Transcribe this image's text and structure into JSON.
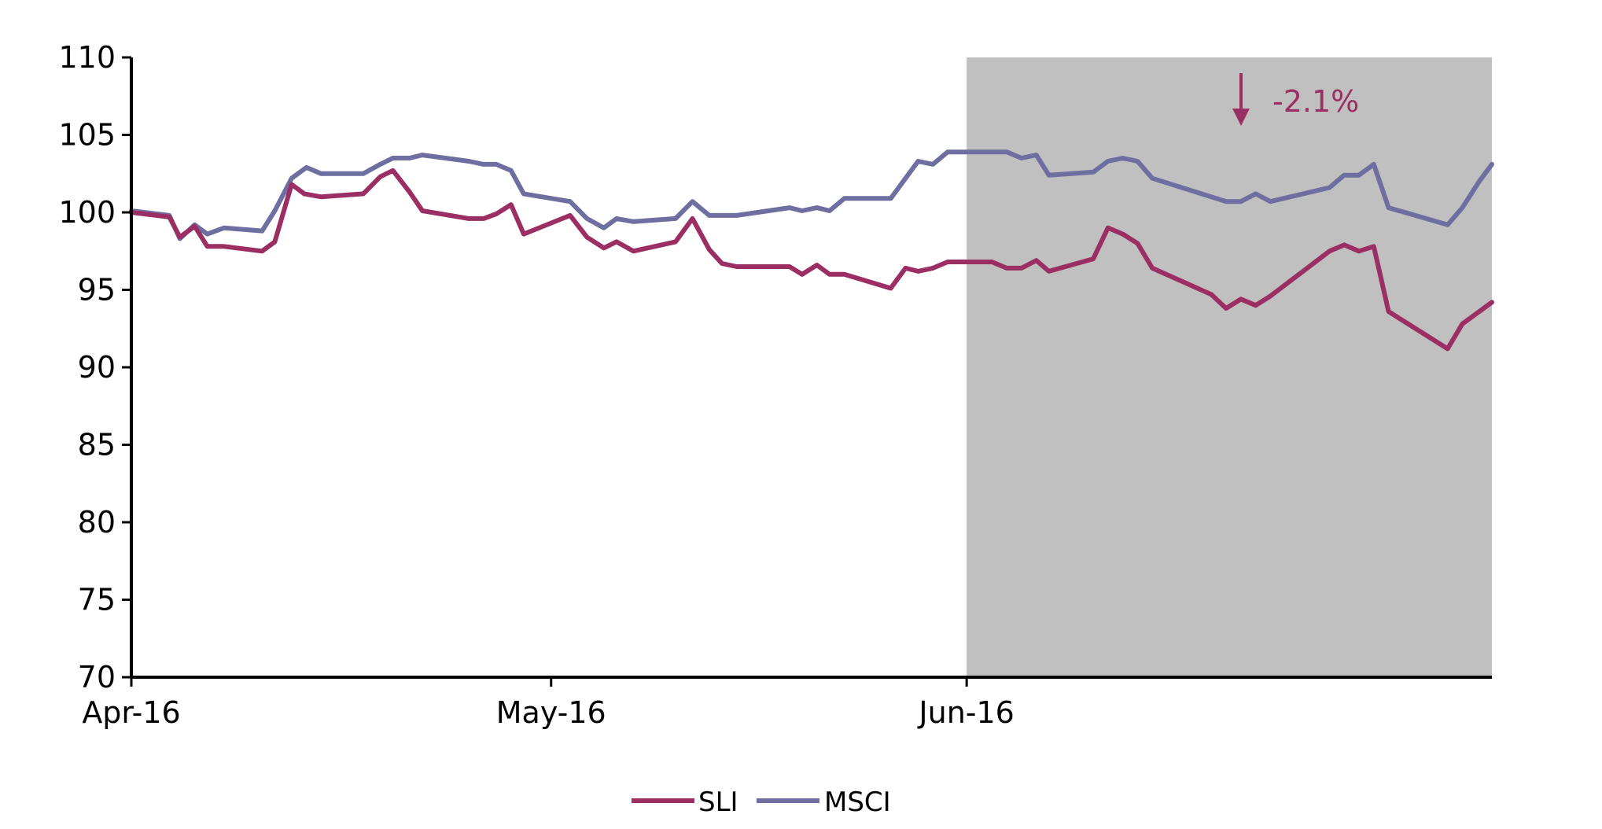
{
  "chart_data": {
    "type": "line",
    "title": "",
    "xlabel": "",
    "ylabel": "",
    "ylim": [
      70,
      110
    ],
    "yticks": [
      70,
      75,
      80,
      85,
      90,
      95,
      100,
      105,
      110
    ],
    "x_tick_labels": [
      "Apr-16",
      "May-16",
      "Jun-16"
    ],
    "grid": false,
    "legend_position": "bottom-center",
    "shaded_region": {
      "from": "Jun-16",
      "to": "end",
      "color": "#c0c0c0"
    },
    "annotation": {
      "text": "-2.1%",
      "arrow": "down",
      "color": "#9b2f63"
    },
    "series": [
      {
        "name": "SLI",
        "color": "#9b2f63",
        "values": [
          [
            0.0,
            100.0
          ],
          [
            1.8,
            99.7
          ],
          [
            2.3,
            98.4
          ],
          [
            3.0,
            99.1
          ],
          [
            3.6,
            97.8
          ],
          [
            4.4,
            97.8
          ],
          [
            6.2,
            97.5
          ],
          [
            6.8,
            98.1
          ],
          [
            7.6,
            101.8
          ],
          [
            8.2,
            101.2
          ],
          [
            9.0,
            101.0
          ],
          [
            11.0,
            101.2
          ],
          [
            11.8,
            102.3
          ],
          [
            12.4,
            102.7
          ],
          [
            13.2,
            101.3
          ],
          [
            13.8,
            100.1
          ],
          [
            16.0,
            99.6
          ],
          [
            16.7,
            99.6
          ],
          [
            17.3,
            99.9
          ],
          [
            18.0,
            100.5
          ],
          [
            18.6,
            98.6
          ],
          [
            20.8,
            99.8
          ],
          [
            21.6,
            98.4
          ],
          [
            22.4,
            97.7
          ],
          [
            23.0,
            98.1
          ],
          [
            23.8,
            97.5
          ],
          [
            25.8,
            98.1
          ],
          [
            26.6,
            99.6
          ],
          [
            27.4,
            97.6
          ],
          [
            28.0,
            96.7
          ],
          [
            28.7,
            96.5
          ],
          [
            31.2,
            96.5
          ],
          [
            31.8,
            96.0
          ],
          [
            32.5,
            96.6
          ],
          [
            33.1,
            96.0
          ],
          [
            33.8,
            96.0
          ],
          [
            36.0,
            95.1
          ],
          [
            36.7,
            96.4
          ],
          [
            37.3,
            96.2
          ],
          [
            38.0,
            96.4
          ],
          [
            38.7,
            96.8
          ],
          [
            40.8,
            96.8
          ],
          [
            41.5,
            96.4
          ],
          [
            42.2,
            96.4
          ],
          [
            42.9,
            96.9
          ],
          [
            43.5,
            96.2
          ],
          [
            45.6,
            97.0
          ],
          [
            46.3,
            99.0
          ],
          [
            47.0,
            98.6
          ],
          [
            47.7,
            98.0
          ],
          [
            48.4,
            96.4
          ],
          [
            51.2,
            94.7
          ],
          [
            51.9,
            93.8
          ],
          [
            52.6,
            94.4
          ],
          [
            53.3,
            94.0
          ],
          [
            54.0,
            94.6
          ],
          [
            56.8,
            97.5
          ],
          [
            57.5,
            97.9
          ],
          [
            58.2,
            97.5
          ],
          [
            58.9,
            97.8
          ],
          [
            59.6,
            93.6
          ],
          [
            62.4,
            91.2
          ],
          [
            63.1,
            92.8
          ],
          [
            64.5,
            94.2
          ]
        ]
      },
      {
        "name": "MSCI",
        "color": "#6e6ea0",
        "values": [
          [
            0.0,
            100.1
          ],
          [
            1.8,
            99.8
          ],
          [
            2.3,
            98.3
          ],
          [
            3.0,
            99.2
          ],
          [
            3.6,
            98.6
          ],
          [
            4.4,
            99.0
          ],
          [
            6.2,
            98.8
          ],
          [
            6.8,
            100.1
          ],
          [
            7.6,
            102.2
          ],
          [
            8.3,
            102.9
          ],
          [
            9.0,
            102.5
          ],
          [
            11.0,
            102.5
          ],
          [
            11.8,
            103.1
          ],
          [
            12.4,
            103.5
          ],
          [
            13.2,
            103.5
          ],
          [
            13.8,
            103.7
          ],
          [
            16.0,
            103.3
          ],
          [
            16.7,
            103.1
          ],
          [
            17.3,
            103.1
          ],
          [
            18.0,
            102.7
          ],
          [
            18.6,
            101.2
          ],
          [
            20.8,
            100.7
          ],
          [
            21.6,
            99.6
          ],
          [
            22.4,
            99.0
          ],
          [
            23.0,
            99.6
          ],
          [
            23.8,
            99.4
          ],
          [
            25.8,
            99.6
          ],
          [
            26.6,
            100.7
          ],
          [
            27.4,
            99.8
          ],
          [
            28.0,
            99.8
          ],
          [
            28.7,
            99.8
          ],
          [
            31.2,
            100.3
          ],
          [
            31.8,
            100.1
          ],
          [
            32.5,
            100.3
          ],
          [
            33.1,
            100.1
          ],
          [
            33.8,
            100.9
          ],
          [
            36.0,
            100.9
          ],
          [
            36.7,
            102.2
          ],
          [
            37.3,
            103.3
          ],
          [
            38.0,
            103.1
          ],
          [
            38.7,
            103.9
          ],
          [
            40.8,
            103.9
          ],
          [
            41.5,
            103.9
          ],
          [
            42.2,
            103.5
          ],
          [
            42.9,
            103.7
          ],
          [
            43.5,
            102.4
          ],
          [
            45.6,
            102.6
          ],
          [
            46.3,
            103.3
          ],
          [
            47.0,
            103.5
          ],
          [
            47.7,
            103.3
          ],
          [
            48.4,
            102.2
          ],
          [
            51.2,
            101.0
          ],
          [
            51.9,
            100.7
          ],
          [
            52.6,
            100.7
          ],
          [
            53.3,
            101.2
          ],
          [
            54.0,
            100.7
          ],
          [
            56.8,
            101.6
          ],
          [
            57.5,
            102.4
          ],
          [
            58.2,
            102.4
          ],
          [
            58.9,
            103.1
          ],
          [
            59.6,
            100.3
          ],
          [
            62.4,
            99.2
          ],
          [
            63.1,
            100.3
          ],
          [
            63.9,
            102.0
          ],
          [
            64.5,
            103.1
          ]
        ]
      }
    ]
  }
}
